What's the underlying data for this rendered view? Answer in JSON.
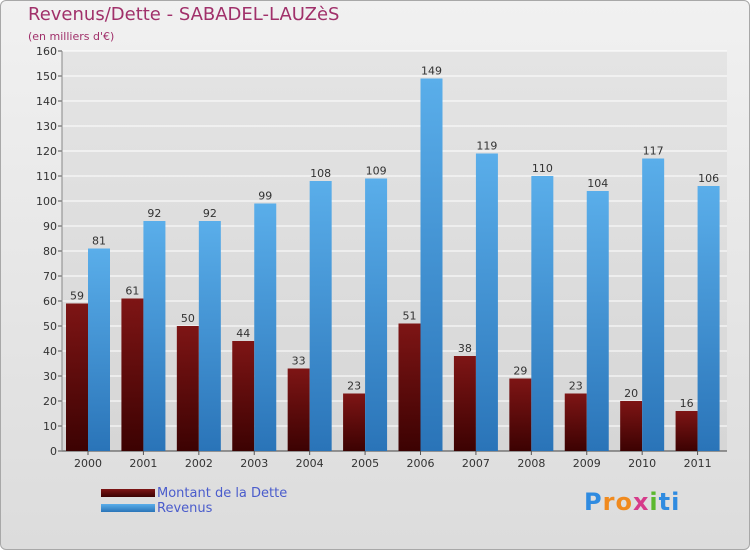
{
  "header": {
    "title": "Revenus/Dette - SABADEL-LAUZèS",
    "subtitle": "(en milliers d'€)"
  },
  "colors": {
    "dette": "#6e0b0b",
    "revenus": "#3c94dc",
    "grid": "#ffffff",
    "axis_text": "#333333",
    "title": "#a0306a"
  },
  "logo": {
    "letters": [
      {
        "char": "P",
        "color": "#2f8be0"
      },
      {
        "char": "r",
        "color": "#f08a1e"
      },
      {
        "char": "o",
        "color": "#f08a1e"
      },
      {
        "char": "x",
        "color": "#d63b8a"
      },
      {
        "char": "i",
        "color": "#5cb82e"
      },
      {
        "char": "t",
        "color": "#2f8be0"
      },
      {
        "char": "i",
        "color": "#2f8be0"
      }
    ]
  },
  "chart_data": {
    "type": "bar",
    "categories": [
      "2000",
      "2001",
      "2002",
      "2003",
      "2004",
      "2005",
      "2006",
      "2007",
      "2008",
      "2009",
      "2010",
      "2011"
    ],
    "series": [
      {
        "name": "Montant de la Dette",
        "values": [
          59,
          61,
          50,
          44,
          33,
          23,
          51,
          38,
          29,
          23,
          20,
          16
        ]
      },
      {
        "name": "Revenus",
        "values": [
          81,
          92,
          92,
          99,
          108,
          109,
          149,
          119,
          110,
          104,
          117,
          106
        ]
      }
    ],
    "yticks": [
      0,
      10,
      20,
      30,
      40,
      50,
      60,
      70,
      80,
      90,
      100,
      110,
      120,
      130,
      140,
      150,
      160
    ],
    "ylim": [
      0,
      160
    ],
    "grid": true,
    "legend": "bottom-left"
  }
}
